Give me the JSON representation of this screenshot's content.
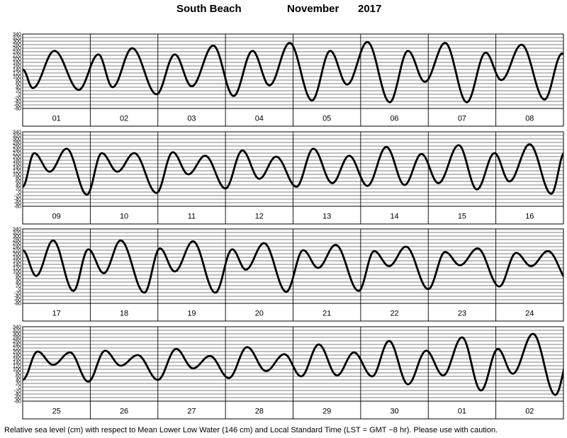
{
  "title": {
    "place": "South Beach",
    "month": "November",
    "year": "2017"
  },
  "caption": "Relative sea level (cm) with respect to Mean Lower Low Water (146 cm) and Local Standard Time (LST = GMT −8 hr). Please use with caution.",
  "colors": {
    "curve": "#000000",
    "grid": "#000000",
    "background": "#ffffff"
  },
  "chart_data": {
    "type": "line",
    "ylabel": "Relative sea level (cm)",
    "ylim": [
      -80,
      340
    ],
    "y_ticks": [
      340,
      320,
      300,
      280,
      260,
      240,
      220,
      200,
      180,
      160,
      140,
      120,
      100,
      80,
      60,
      40,
      20,
      0,
      -20,
      -40,
      -60,
      -80
    ],
    "grid": true,
    "panels": [
      {
        "day_labels": [
          "01",
          "02",
          "03",
          "04",
          "05",
          "06",
          "07",
          "08"
        ],
        "extrema": [
          [
            0,
            140
          ],
          [
            0.15,
            35
          ],
          [
            0.47,
            245
          ],
          [
            0.83,
            25
          ],
          [
            1.12,
            225
          ],
          [
            1.33,
            40
          ],
          [
            1.62,
            260
          ],
          [
            1.98,
            0
          ],
          [
            2.25,
            225
          ],
          [
            2.5,
            45
          ],
          [
            2.82,
            275
          ],
          [
            3.12,
            -10
          ],
          [
            3.4,
            245
          ],
          [
            3.65,
            50
          ],
          [
            3.95,
            290
          ],
          [
            4.28,
            -35
          ],
          [
            4.55,
            245
          ],
          [
            4.8,
            55
          ],
          [
            5.1,
            295
          ],
          [
            5.43,
            -45
          ],
          [
            5.7,
            245
          ],
          [
            5.95,
            70
          ],
          [
            6.25,
            290
          ],
          [
            6.57,
            -45
          ],
          [
            6.85,
            235
          ],
          [
            7.08,
            80
          ],
          [
            7.38,
            280
          ],
          [
            7.72,
            -30
          ],
          [
            7.98,
            230
          ],
          [
            8.2,
            100
          ],
          [
            8.5,
            265
          ],
          [
            8.87,
            -20
          ],
          [
            9,
            20
          ]
        ]
      },
      {
        "day_labels": [
          "09",
          "10",
          "11",
          "12",
          "13",
          "14",
          "15",
          "16"
        ],
        "extrema": [
          [
            0,
            30
          ],
          [
            0.17,
            220
          ],
          [
            0.4,
            115
          ],
          [
            0.65,
            245
          ],
          [
            0.95,
            -15
          ],
          [
            1.17,
            220
          ],
          [
            1.4,
            115
          ],
          [
            1.65,
            220
          ],
          [
            1.98,
            -5
          ],
          [
            2.22,
            225
          ],
          [
            2.45,
            100
          ],
          [
            2.7,
            205
          ],
          [
            3.0,
            20
          ],
          [
            3.25,
            235
          ],
          [
            3.5,
            75
          ],
          [
            3.75,
            200
          ],
          [
            4.05,
            30
          ],
          [
            4.3,
            245
          ],
          [
            4.58,
            50
          ],
          [
            4.83,
            205
          ],
          [
            5.1,
            35
          ],
          [
            5.38,
            255
          ],
          [
            5.65,
            40
          ],
          [
            5.9,
            215
          ],
          [
            6.15,
            50
          ],
          [
            6.45,
            265
          ],
          [
            6.72,
            15
          ],
          [
            6.98,
            220
          ],
          [
            7.2,
            60
          ],
          [
            7.5,
            270
          ],
          [
            7.82,
            -10
          ],
          [
            8.02,
            225
          ],
          [
            8.2,
            60
          ],
          [
            8.5,
            220
          ]
        ]
      },
      {
        "day_labels": [
          "17",
          "18",
          "19",
          "20",
          "21",
          "22",
          "23",
          "24"
        ],
        "extrema": [
          [
            0,
            220
          ],
          [
            0.2,
            75
          ],
          [
            0.45,
            275
          ],
          [
            0.75,
            -10
          ],
          [
            0.97,
            225
          ],
          [
            1.2,
            90
          ],
          [
            1.45,
            275
          ],
          [
            1.8,
            -20
          ],
          [
            2.03,
            230
          ],
          [
            2.25,
            100
          ],
          [
            2.52,
            270
          ],
          [
            2.85,
            -20
          ],
          [
            3.1,
            225
          ],
          [
            3.3,
            110
          ],
          [
            3.57,
            260
          ],
          [
            3.9,
            -15
          ],
          [
            4.15,
            220
          ],
          [
            4.37,
            120
          ],
          [
            4.63,
            250
          ],
          [
            4.97,
            -10
          ],
          [
            5.2,
            215
          ],
          [
            5.42,
            130
          ],
          [
            5.67,
            240
          ],
          [
            6.0,
            0
          ],
          [
            6.25,
            210
          ],
          [
            6.47,
            135
          ],
          [
            6.73,
            230
          ],
          [
            7.05,
            15
          ],
          [
            7.3,
            205
          ],
          [
            7.52,
            130
          ],
          [
            7.77,
            215
          ],
          [
            8.1,
            35
          ],
          [
            8.35,
            200
          ]
        ]
      },
      {
        "day_labels": [
          "25",
          "26",
          "27",
          "28",
          "29",
          "30",
          "01",
          "02"
        ],
        "extrema": [
          [
            0,
            40
          ],
          [
            0.22,
            200
          ],
          [
            0.45,
            125
          ],
          [
            0.7,
            195
          ],
          [
            0.97,
            30
          ],
          [
            1.22,
            205
          ],
          [
            1.45,
            120
          ],
          [
            1.7,
            180
          ],
          [
            2.0,
            40
          ],
          [
            2.27,
            215
          ],
          [
            2.52,
            105
          ],
          [
            2.77,
            175
          ],
          [
            3.05,
            50
          ],
          [
            3.32,
            225
          ],
          [
            3.6,
            90
          ],
          [
            3.87,
            185
          ],
          [
            4.12,
            60
          ],
          [
            4.38,
            240
          ],
          [
            4.65,
            65
          ],
          [
            4.9,
            195
          ],
          [
            5.17,
            60
          ],
          [
            5.42,
            260
          ],
          [
            5.7,
            15
          ],
          [
            5.97,
            205
          ],
          [
            6.22,
            65
          ],
          [
            6.5,
            280
          ],
          [
            6.78,
            -20
          ],
          [
            7.03,
            215
          ],
          [
            7.25,
            75
          ],
          [
            7.55,
            300
          ],
          [
            7.88,
            -45
          ],
          [
            8.12,
            225
          ],
          [
            8.3,
            90
          ],
          [
            8.5,
            235
          ]
        ]
      }
    ]
  }
}
